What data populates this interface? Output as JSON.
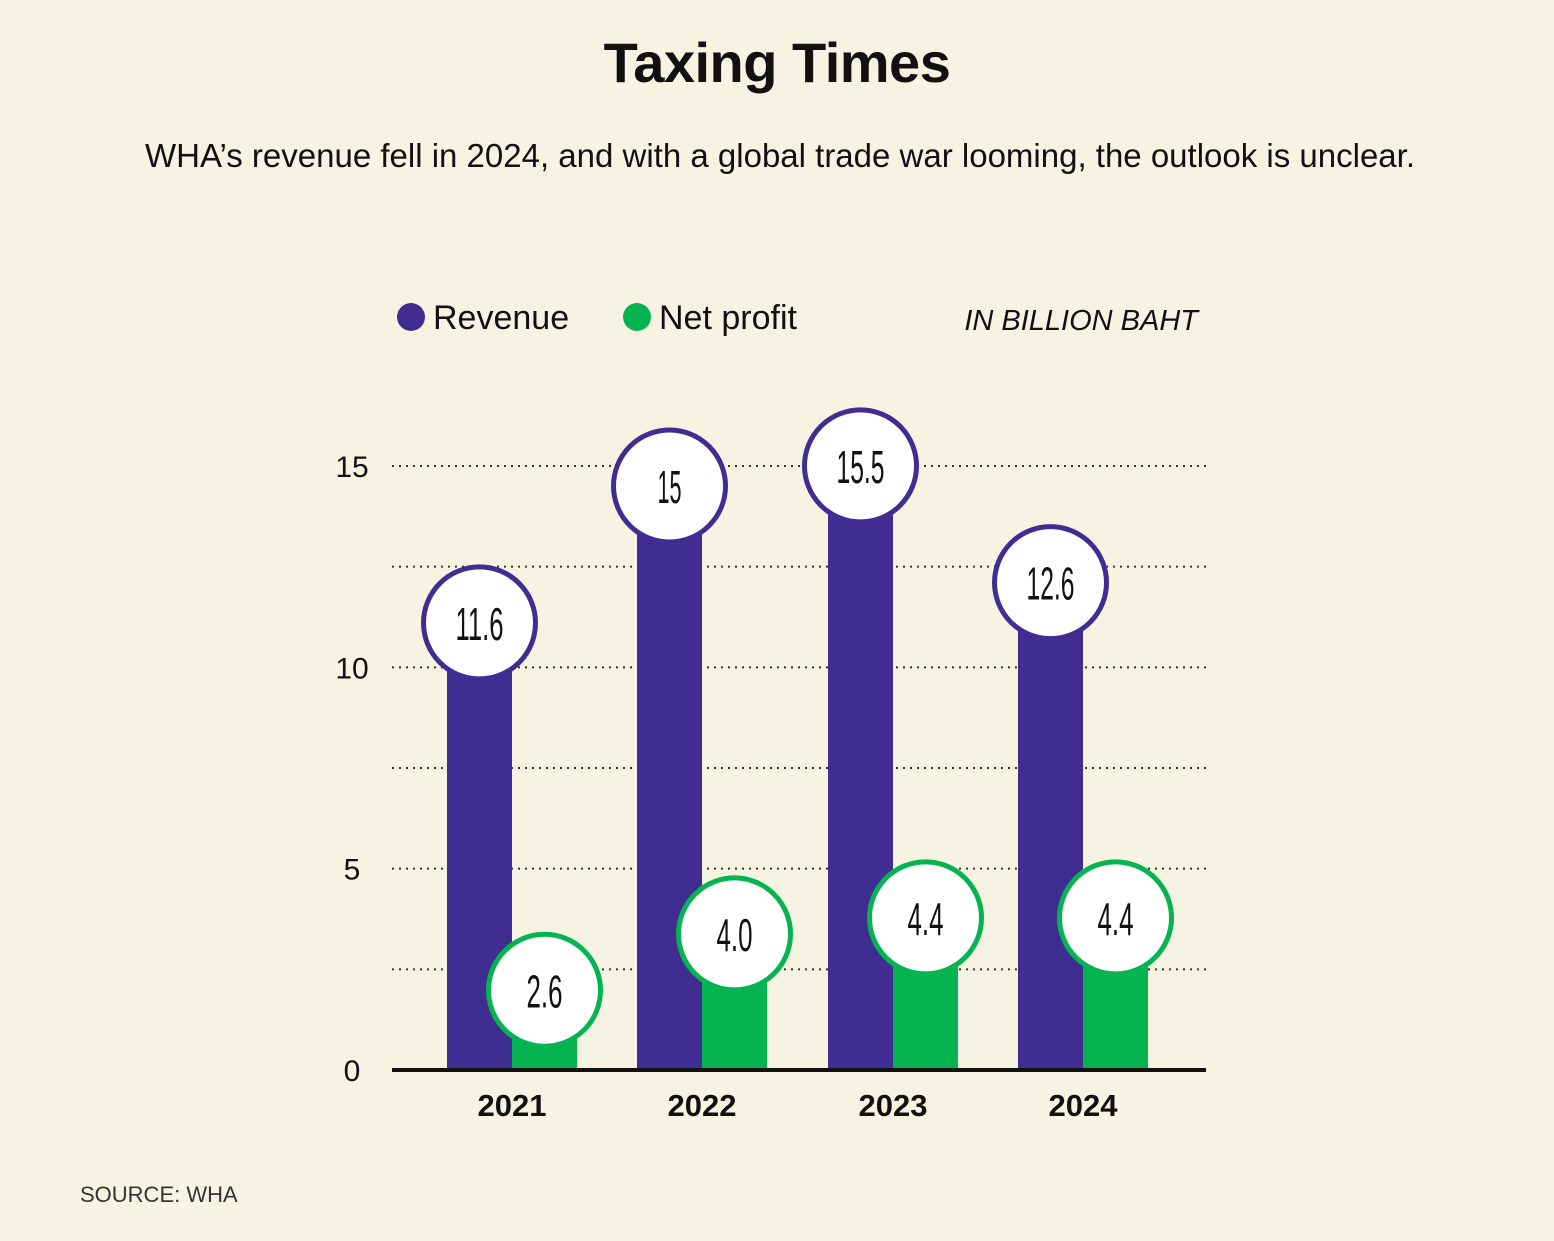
{
  "chart_data": {
    "type": "bar",
    "title": "Taxing Times",
    "subtitle": "WHA’s revenue fell in 2024, and with a global trade war looming, the outlook is unclear.",
    "unit_label": "IN BILLION BAHT",
    "source": "SOURCE: WHA",
    "categories": [
      "2021",
      "2022",
      "2023",
      "2024"
    ],
    "series": [
      {
        "name": "Revenue",
        "color": "#402d91",
        "values": [
          11.6,
          15,
          15.5,
          12.6
        ],
        "labels": [
          "11.6",
          "15",
          "15.5",
          "12.6"
        ]
      },
      {
        "name": "Net profit",
        "color": "#05b450",
        "values": [
          2.6,
          4.0,
          4.4,
          4.4
        ],
        "labels": [
          "2.6",
          "4.0",
          "4.4",
          "4.4"
        ]
      }
    ],
    "ylim": [
      0,
      15
    ],
    "yticks": [
      0,
      5,
      10,
      15
    ],
    "ytick_labels": [
      "0",
      "5",
      "10",
      "15"
    ],
    "grid_step": 2.5,
    "grid": true,
    "legend": "top-left",
    "xlabel": "",
    "ylabel": ""
  }
}
